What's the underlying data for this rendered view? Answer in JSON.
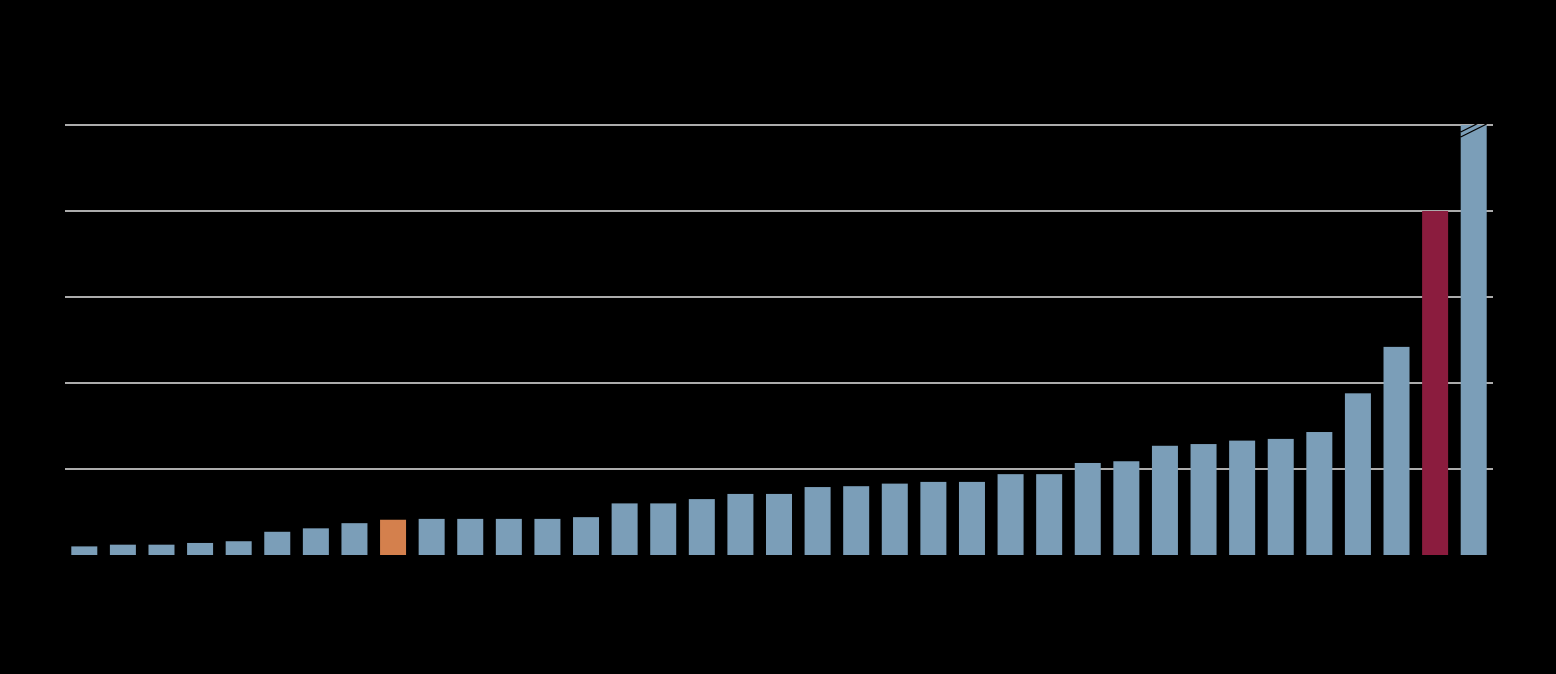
{
  "chart_data": {
    "type": "bar",
    "values": [
      0.1,
      0.12,
      0.12,
      0.14,
      0.16,
      0.27,
      0.31,
      0.37,
      0.41,
      0.42,
      0.42,
      0.42,
      0.42,
      0.44,
      0.6,
      0.6,
      0.65,
      0.71,
      0.71,
      0.79,
      0.8,
      0.83,
      0.85,
      0.85,
      0.94,
      0.94,
      1.07,
      1.09,
      1.27,
      1.29,
      1.33,
      1.35,
      1.43,
      1.88,
      2.42,
      4.0,
      5.0
    ],
    "colors": [
      "#7b9eb8",
      "#7b9eb8",
      "#7b9eb8",
      "#7b9eb8",
      "#7b9eb8",
      "#7b9eb8",
      "#7b9eb8",
      "#7b9eb8",
      "#d4804d",
      "#7b9eb8",
      "#7b9eb8",
      "#7b9eb8",
      "#7b9eb8",
      "#7b9eb8",
      "#7b9eb8",
      "#7b9eb8",
      "#7b9eb8",
      "#7b9eb8",
      "#7b9eb8",
      "#7b9eb8",
      "#7b9eb8",
      "#7b9eb8",
      "#7b9eb8",
      "#7b9eb8",
      "#7b9eb8",
      "#7b9eb8",
      "#7b9eb8",
      "#7b9eb8",
      "#7b9eb8",
      "#7b9eb8",
      "#7b9eb8",
      "#7b9eb8",
      "#7b9eb8",
      "#7b9eb8",
      "#7b9eb8",
      "#8b1c3e",
      "#7b9eb8"
    ],
    "ylim": [
      0,
      5
    ],
    "yticks": [
      1,
      2,
      3,
      4,
      5
    ],
    "grid": true
  }
}
